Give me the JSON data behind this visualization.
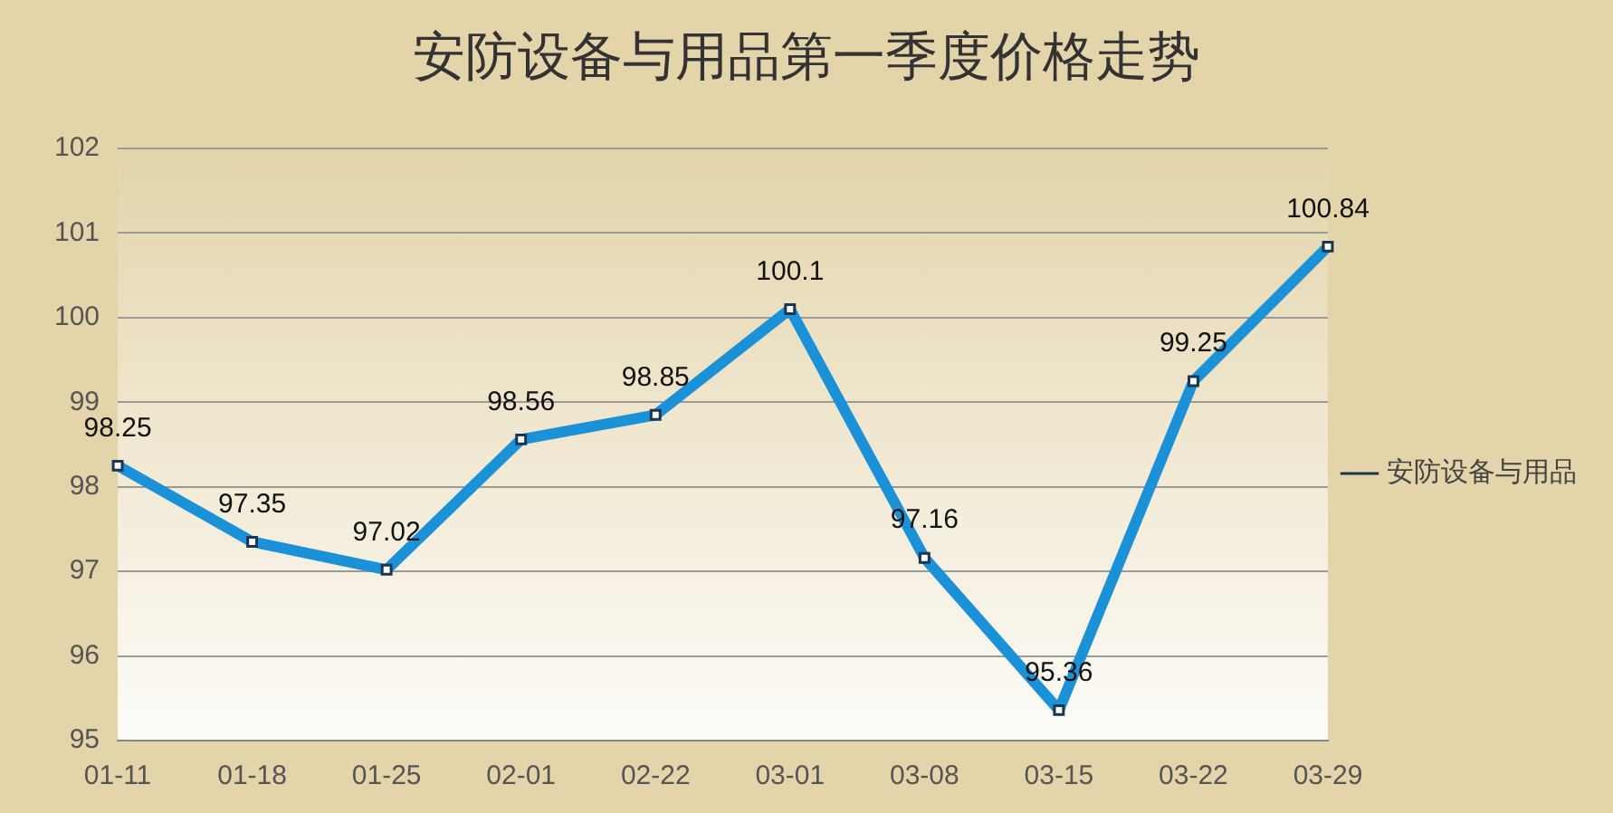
{
  "chart_data": {
    "type": "line",
    "title": "安防设备与用品第一季度价格走势",
    "categories": [
      "01-11",
      "01-18",
      "01-25",
      "02-01",
      "02-22",
      "03-01",
      "03-08",
      "03-15",
      "03-22",
      "03-29"
    ],
    "series": [
      {
        "name": "安防设备与用品",
        "color": "#1b91d8",
        "values": [
          98.25,
          97.35,
          97.02,
          98.56,
          98.85,
          100.1,
          97.16,
          95.36,
          99.25,
          100.84
        ]
      }
    ],
    "ylim": [
      95,
      102
    ],
    "yticks": [
      95,
      96,
      97,
      98,
      99,
      100,
      101,
      102
    ],
    "grid": "y",
    "legend": "right",
    "marker": "square",
    "line_style": "solid",
    "data_labels": true
  }
}
